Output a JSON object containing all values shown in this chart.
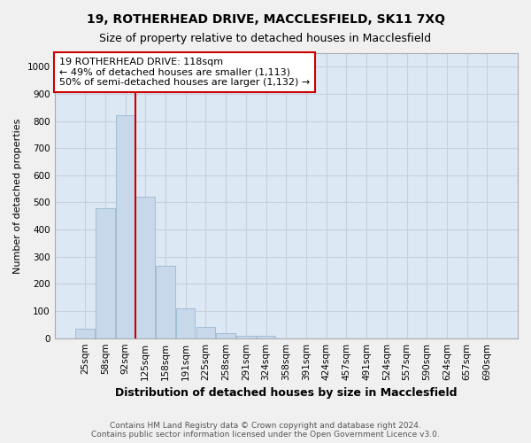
{
  "title": "19, ROTHERHEAD DRIVE, MACCLESFIELD, SK11 7XQ",
  "subtitle": "Size of property relative to detached houses in Macclesfield",
  "xlabel": "Distribution of detached houses by size in Macclesfield",
  "ylabel": "Number of detached properties",
  "categories": [
    "25sqm",
    "58sqm",
    "92sqm",
    "125sqm",
    "158sqm",
    "191sqm",
    "225sqm",
    "258sqm",
    "291sqm",
    "324sqm",
    "358sqm",
    "391sqm",
    "424sqm",
    "457sqm",
    "491sqm",
    "524sqm",
    "557sqm",
    "590sqm",
    "624sqm",
    "657sqm",
    "690sqm"
  ],
  "bar_heights": [
    35,
    480,
    820,
    520,
    265,
    110,
    40,
    20,
    10,
    10,
    0,
    0,
    0,
    0,
    0,
    0,
    0,
    0,
    0,
    0,
    0
  ],
  "bar_color": "#c8d8eb",
  "bar_edge_color": "#9ab8d0",
  "vline_color": "#cc0000",
  "vline_x": 2.5,
  "annotation_text": "19 ROTHERHEAD DRIVE: 118sqm\n← 49% of detached houses are smaller (1,113)\n50% of semi-detached houses are larger (1,132) →",
  "annotation_box_color": "#ffffff",
  "annotation_box_edge": "#cc0000",
  "ylim": [
    0,
    1050
  ],
  "yticks": [
    0,
    100,
    200,
    300,
    400,
    500,
    600,
    700,
    800,
    900,
    1000
  ],
  "grid_color": "#c8d0dc",
  "bg_color": "#dce8f4",
  "fig_bg_color": "#f0f0f0",
  "footer": "Contains HM Land Registry data © Crown copyright and database right 2024.\nContains public sector information licensed under the Open Government Licence v3.0.",
  "title_fontsize": 10,
  "subtitle_fontsize": 9,
  "xlabel_fontsize": 9,
  "ylabel_fontsize": 8,
  "tick_fontsize": 7.5,
  "footer_fontsize": 6.5,
  "annot_fontsize": 8
}
